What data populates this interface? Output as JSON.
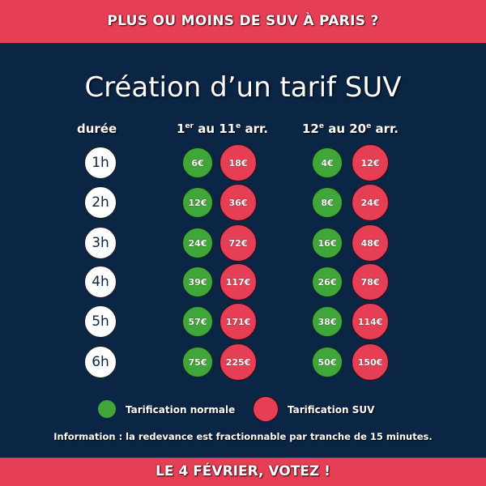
{
  "header": {
    "banner": "PLUS OU MOINS DE SUV À PARIS ?"
  },
  "title": "Création d’un tarif SUV",
  "columns": {
    "duration": "durée",
    "zone1": {
      "pre": "1",
      "sup1": "er",
      "mid": " au 11",
      "sup2": "e",
      "post": " arr."
    },
    "zone2": {
      "pre": "12",
      "sup1": "e",
      "mid": " au 20",
      "sup2": "e",
      "post": " arr."
    }
  },
  "rows": [
    {
      "duration": "1h",
      "zone1_normal": "6€",
      "zone1_suv": "18€",
      "zone2_normal": "4€",
      "zone2_suv": "12€"
    },
    {
      "duration": "2h",
      "zone1_normal": "12€",
      "zone1_suv": "36€",
      "zone2_normal": "8€",
      "zone2_suv": "24€"
    },
    {
      "duration": "3h",
      "zone1_normal": "24€",
      "zone1_suv": "72€",
      "zone2_normal": "16€",
      "zone2_suv": "48€"
    },
    {
      "duration": "4h",
      "zone1_normal": "39€",
      "zone1_suv": "117€",
      "zone2_normal": "26€",
      "zone2_suv": "78€"
    },
    {
      "duration": "5h",
      "zone1_normal": "57€",
      "zone1_suv": "171€",
      "zone2_normal": "38€",
      "zone2_suv": "114€"
    },
    {
      "duration": "6h",
      "zone1_normal": "75€",
      "zone1_suv": "225€",
      "zone2_normal": "50€",
      "zone2_suv": "150€"
    }
  ],
  "legend": {
    "normal": "Tarification normale",
    "suv": "Tarification SUV"
  },
  "info": "Information : la redevance est fractionnable par tranche de 15 minutes.",
  "footer": {
    "banner": "LE 4 FÉVRIER, VOTEZ !"
  },
  "colors": {
    "red": "#e63f55",
    "green": "#41a63a",
    "navy": "#0b2545"
  }
}
